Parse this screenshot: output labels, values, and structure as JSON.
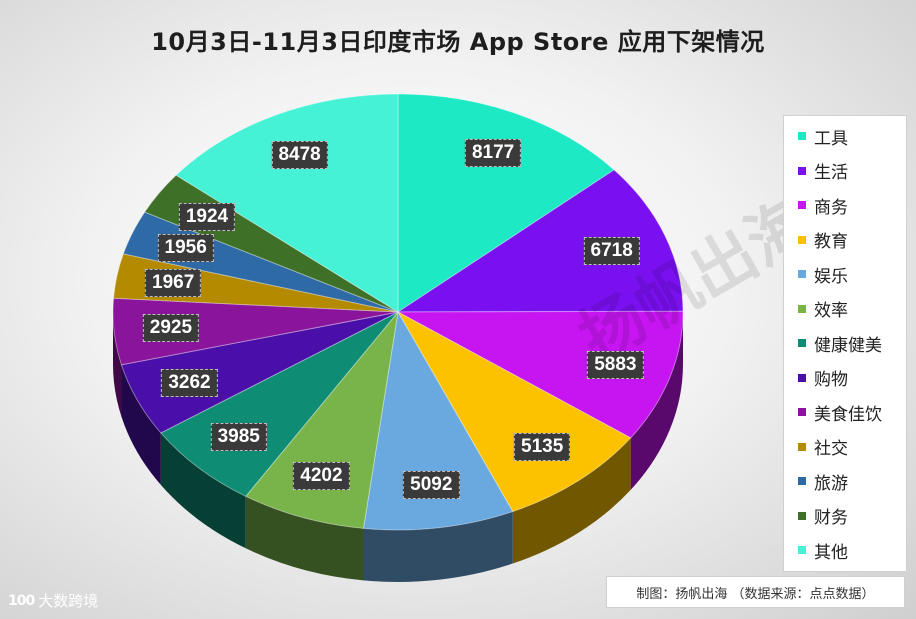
{
  "chart_data": {
    "type": "pie",
    "title": "10月3日-11月3日印度市场 App Store 应用下架情况",
    "categories": [
      "工具",
      "生活",
      "商务",
      "教育",
      "娱乐",
      "效率",
      "健康健美",
      "购物",
      "美食佳饮",
      "社交",
      "旅游",
      "财务",
      "其他"
    ],
    "values": [
      8177,
      6718,
      5883,
      5135,
      5092,
      4202,
      3985,
      3262,
      2925,
      1967,
      1956,
      1924,
      8478
    ],
    "colors": [
      "#1de9c4",
      "#7a10f0",
      "#c615f0",
      "#fcc200",
      "#6aa9e0",
      "#79b44a",
      "#0e8c74",
      "#4a0fa8",
      "#8a159c",
      "#b38a00",
      "#2e6aa6",
      "#3e7028",
      "#45f2d6"
    ],
    "legend_position": "right",
    "style": "3d"
  },
  "source_note": "制图：扬帆出海 （数据来源：点点数据）",
  "watermark_text": "扬帆出海",
  "corner_logo": {
    "mark": "100",
    "text": "大数跨境"
  }
}
